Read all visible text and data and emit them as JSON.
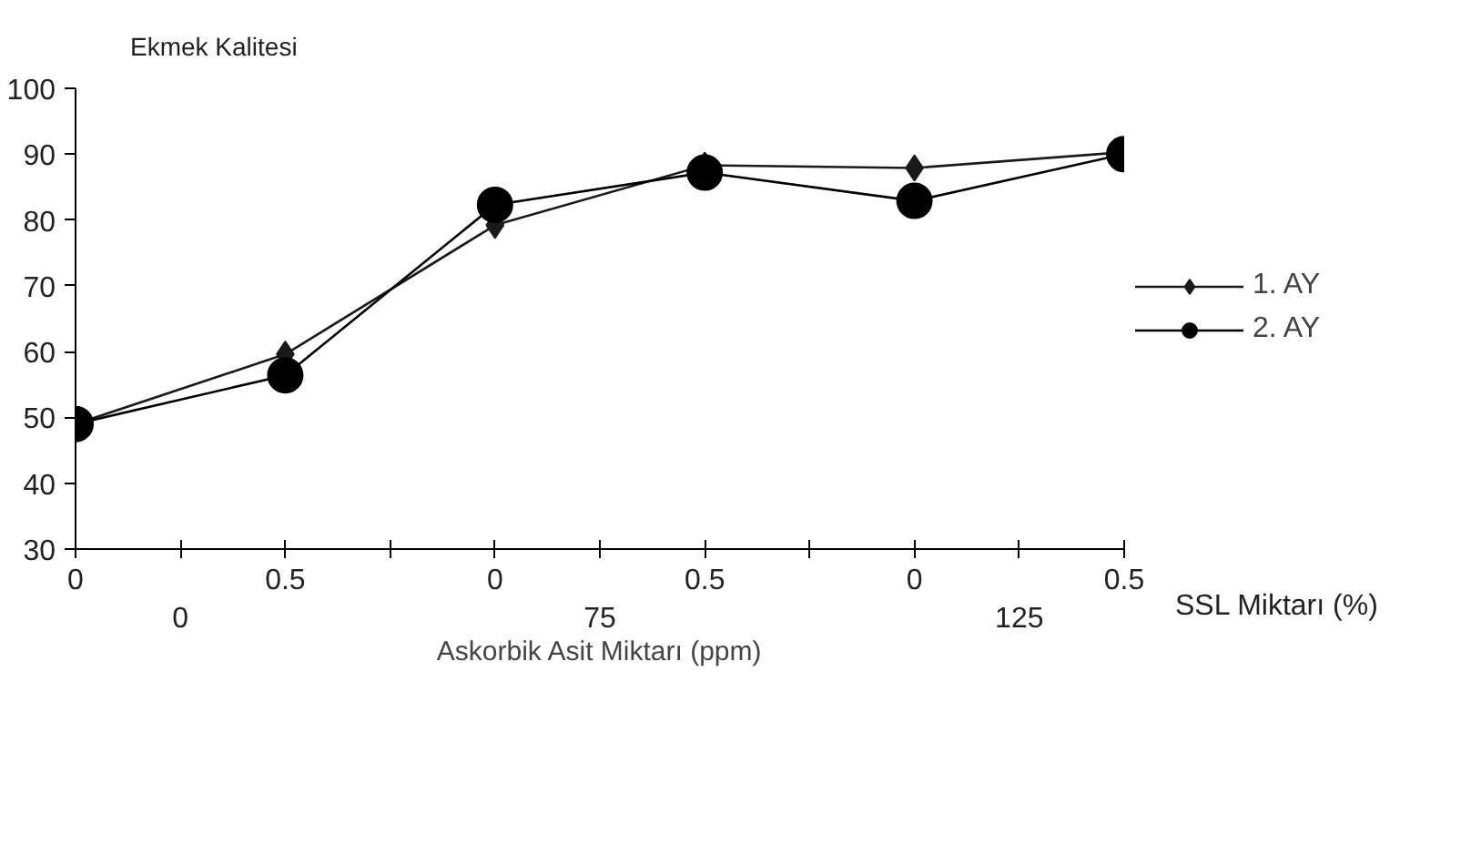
{
  "chart_data": {
    "type": "line",
    "ylabel": "Ekmek Kalitesi",
    "xlabel": "Askorbik Asit Miktarı (ppm)",
    "categories": [
      "0",
      "0.5",
      "0",
      "0.5",
      "0",
      "0.5"
    ],
    "series": [
      {
        "name": "1. AY",
        "color": "#1a1a1a",
        "marker": "diamond",
        "values": [
          49,
          59.6,
          79.2,
          88.3,
          87.9,
          90.3
        ]
      },
      {
        "name": "2. AY",
        "color": "#000000",
        "marker": "circle",
        "values": [
          49,
          56.4,
          82.3,
          87.2,
          82.9,
          90.0
        ]
      }
    ],
    "annotations": [
      "SSL Miktarı (%)",
      "0",
      "75",
      "125"
    ],
    "ylim": [
      30,
      100
    ],
    "yticks": [
      30,
      40,
      50,
      60,
      70,
      80,
      90,
      100
    ],
    "grid": false,
    "legend": "right",
    "line_style": "solid"
  }
}
